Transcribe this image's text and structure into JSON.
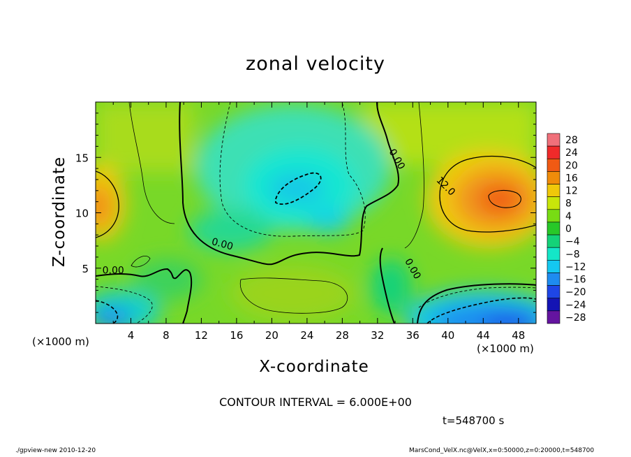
{
  "chart_data": {
    "type": "heatmap",
    "title": "zonal velocity",
    "xlabel": "X-coordinate",
    "ylabel": "Z-coordinate",
    "x_unit": "(×1000 m)",
    "xlim": [
      0,
      50
    ],
    "ylim": [
      0,
      20
    ],
    "x_ticks": [
      4,
      8,
      12,
      16,
      20,
      24,
      28,
      32,
      36,
      40,
      44,
      48
    ],
    "y_ticks": [
      5,
      10,
      15
    ],
    "colorbar": {
      "levels": [
        28,
        24,
        20,
        16,
        12,
        8,
        4,
        0,
        -4,
        -8,
        -12,
        -16,
        -20,
        -24,
        -28
      ],
      "colors": [
        "#f0707a",
        "#f02a2a",
        "#f05a14",
        "#f08c0a",
        "#f0c80a",
        "#c8e60a",
        "#78dc14",
        "#28c828",
        "#14d278",
        "#14e6c8",
        "#14c8f0",
        "#1e8cf0",
        "#1e46e6",
        "#1414b4",
        "#6414a0"
      ]
    },
    "contour_labels": [
      {
        "text": "0.00",
        "x": 14.3,
        "z": 6.9
      },
      {
        "text": "0.00",
        "x": 2.0,
        "z": 4.5
      },
      {
        "text": "0.00",
        "x": 33.9,
        "z": 14.7
      },
      {
        "text": "0.00",
        "x": 35.7,
        "z": 4.8
      },
      {
        "text": "12.0",
        "x": 39.5,
        "z": 12.2
      }
    ],
    "contour_interval": "CONTOUR INTERVAL = 6.000E+00",
    "time": "t=548700 s"
  },
  "footer": {
    "left": "./gpview-new   2010-12-20",
    "right": "MarsCond_VelX.nc@VelX,x=0:50000,z=0:20000,t=548700"
  }
}
